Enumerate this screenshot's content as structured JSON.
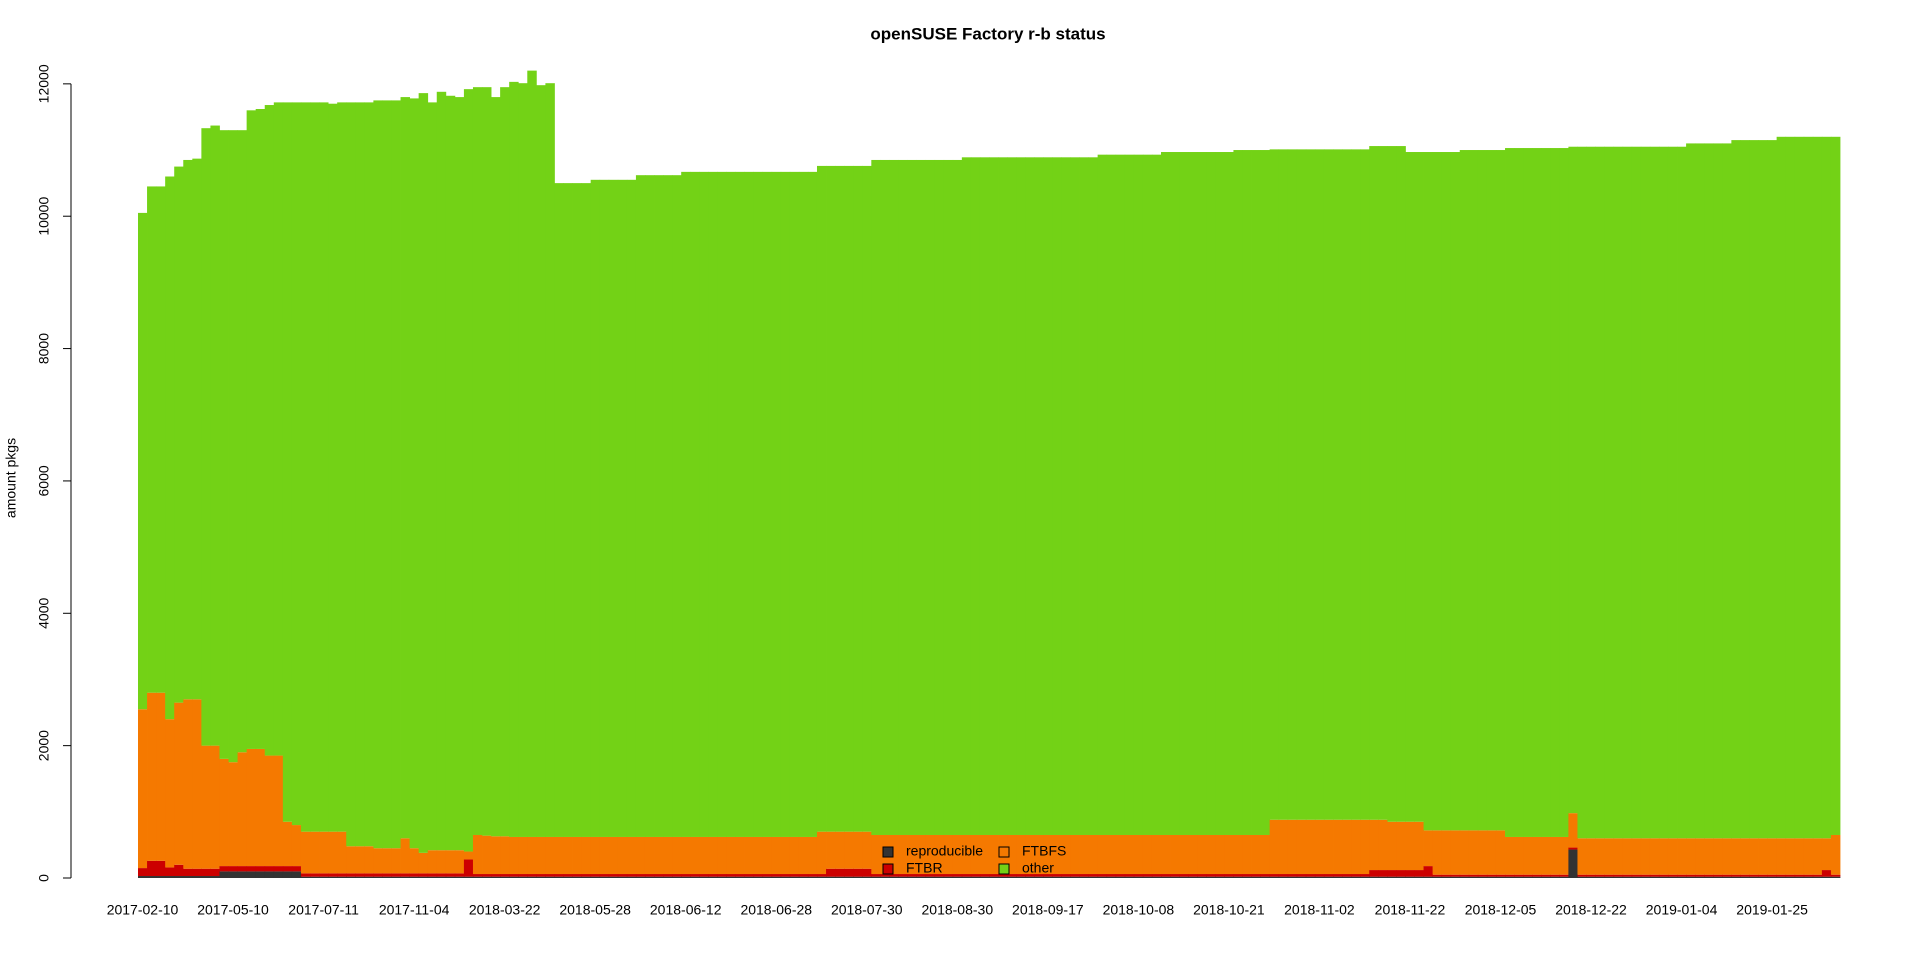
{
  "chart_data": {
    "type": "stacked-bar",
    "title": "openSUSE Factory r-b status",
    "y_label": "amount pkgs",
    "categories": [
      "2017-02-10",
      null,
      null,
      null,
      null,
      null,
      null,
      null,
      null,
      null,
      "2017-05-10",
      null,
      null,
      null,
      null,
      null,
      null,
      null,
      null,
      null,
      "2017-07-11",
      null,
      null,
      null,
      null,
      null,
      null,
      null,
      null,
      null,
      "2017-11-04",
      null,
      null,
      null,
      null,
      null,
      null,
      null,
      null,
      null,
      "2018-03-22",
      null,
      null,
      null,
      null,
      null,
      null,
      null,
      null,
      null,
      "2018-05-28",
      null,
      null,
      null,
      null,
      null,
      null,
      null,
      null,
      null,
      "2018-06-12",
      null,
      null,
      null,
      null,
      null,
      null,
      null,
      null,
      null,
      "2018-06-28",
      null,
      null,
      null,
      null,
      null,
      null,
      null,
      null,
      null,
      "2018-07-30",
      null,
      null,
      null,
      null,
      null,
      null,
      null,
      null,
      null,
      "2018-08-30",
      null,
      null,
      null,
      null,
      null,
      null,
      null,
      null,
      null,
      "2018-09-17",
      null,
      null,
      null,
      null,
      null,
      null,
      null,
      null,
      null,
      "2018-10-08",
      null,
      null,
      null,
      null,
      null,
      null,
      null,
      null,
      null,
      "2018-10-21",
      null,
      null,
      null,
      null,
      null,
      null,
      null,
      null,
      null,
      "2018-11-02",
      null,
      null,
      null,
      null,
      null,
      null,
      null,
      null,
      null,
      "2018-11-22",
      null,
      null,
      null,
      null,
      null,
      null,
      null,
      null,
      null,
      "2018-12-05",
      null,
      null,
      null,
      null,
      null,
      null,
      null,
      null,
      null,
      "2018-12-22",
      null,
      null,
      null,
      null,
      null,
      null,
      null,
      null,
      null,
      "2019-01-04",
      null,
      null,
      null,
      null,
      null,
      null,
      null,
      null,
      null,
      "2019-01-25",
      null,
      null,
      null,
      null,
      null,
      null,
      null
    ],
    "series": [
      {
        "name": "reproducible",
        "color": "#333333",
        "values": [
          30,
          30,
          30,
          30,
          30,
          30,
          30,
          30,
          30,
          100,
          100,
          100,
          100,
          100,
          100,
          100,
          100,
          100,
          20,
          20,
          20,
          20,
          20,
          20,
          20,
          20,
          20,
          20,
          20,
          20,
          20,
          20,
          20,
          20,
          20,
          20,
          20,
          20,
          20,
          20,
          20,
          20,
          20,
          20,
          20,
          20,
          20,
          20,
          20,
          20,
          20,
          20,
          20,
          20,
          20,
          20,
          20,
          20,
          20,
          20,
          20,
          20,
          20,
          20,
          20,
          20,
          20,
          20,
          20,
          20,
          20,
          20,
          20,
          20,
          20,
          20,
          20,
          20,
          20,
          20,
          20,
          20,
          20,
          20,
          20,
          20,
          20,
          20,
          20,
          20,
          20,
          20,
          20,
          20,
          20,
          20,
          20,
          20,
          20,
          20,
          20,
          20,
          20,
          20,
          20,
          20,
          20,
          20,
          20,
          20,
          20,
          20,
          20,
          20,
          20,
          20,
          20,
          20,
          20,
          20,
          20,
          20,
          20,
          20,
          20,
          20,
          20,
          20,
          20,
          20,
          20,
          20,
          20,
          20,
          20,
          20,
          20,
          20,
          20,
          20,
          20,
          20,
          20,
          20,
          20,
          20,
          20,
          20,
          20,
          20,
          20,
          20,
          20,
          20,
          20,
          20,
          20,
          20,
          430,
          20,
          20,
          20,
          20,
          20,
          20,
          20,
          20,
          20,
          20,
          20,
          20,
          20,
          20,
          20,
          20,
          20,
          20,
          20,
          20,
          20,
          20,
          20,
          20,
          20,
          20,
          20,
          20,
          20
        ]
      },
      {
        "name": "FTBR",
        "color": "#cc0000",
        "values": [
          120,
          230,
          230,
          130,
          170,
          110,
          110,
          110,
          110,
          80,
          80,
          80,
          80,
          80,
          80,
          80,
          80,
          80,
          50,
          50,
          50,
          50,
          50,
          50,
          50,
          50,
          50,
          50,
          50,
          50,
          50,
          50,
          50,
          50,
          50,
          50,
          260,
          40,
          40,
          40,
          40,
          40,
          40,
          40,
          40,
          40,
          40,
          40,
          40,
          40,
          40,
          40,
          40,
          40,
          40,
          40,
          40,
          40,
          40,
          40,
          40,
          40,
          40,
          40,
          40,
          40,
          40,
          40,
          40,
          40,
          40,
          40,
          40,
          40,
          40,
          40,
          120,
          120,
          120,
          120,
          120,
          40,
          40,
          40,
          40,
          40,
          40,
          40,
          40,
          40,
          40,
          40,
          40,
          40,
          40,
          40,
          40,
          40,
          40,
          40,
          40,
          40,
          40,
          40,
          40,
          40,
          40,
          40,
          40,
          40,
          40,
          40,
          40,
          40,
          40,
          40,
          40,
          40,
          40,
          40,
          40,
          40,
          40,
          40,
          40,
          40,
          40,
          40,
          40,
          40,
          40,
          40,
          40,
          40,
          40,
          40,
          100,
          100,
          100,
          100,
          100,
          100,
          160,
          30,
          30,
          30,
          30,
          30,
          30,
          30,
          30,
          30,
          30,
          30,
          30,
          30,
          30,
          30,
          30,
          30,
          30,
          30,
          30,
          30,
          30,
          30,
          30,
          30,
          30,
          30,
          30,
          30,
          30,
          30,
          30,
          30,
          30,
          30,
          30,
          30,
          30,
          30,
          30,
          30,
          30,
          30,
          100,
          30
        ]
      },
      {
        "name": "FTBFS",
        "color": "#f57900",
        "values": [
          2400,
          2540,
          2540,
          2240,
          2450,
          2560,
          2560,
          1860,
          1860,
          1620,
          1570,
          1720,
          1770,
          1770,
          1670,
          1670,
          670,
          620,
          630,
          630,
          630,
          630,
          630,
          410,
          410,
          410,
          380,
          380,
          380,
          530,
          380,
          310,
          350,
          350,
          350,
          350,
          120,
          590,
          580,
          570,
          570,
          560,
          560,
          560,
          560,
          560,
          560,
          560,
          560,
          560,
          560,
          560,
          560,
          560,
          560,
          560,
          560,
          560,
          560,
          560,
          560,
          560,
          560,
          560,
          560,
          560,
          560,
          560,
          560,
          560,
          560,
          560,
          560,
          560,
          560,
          640,
          560,
          560,
          560,
          560,
          560,
          590,
          590,
          590,
          590,
          590,
          590,
          590,
          590,
          590,
          590,
          590,
          590,
          590,
          590,
          590,
          590,
          590,
          590,
          590,
          590,
          590,
          590,
          590,
          590,
          590,
          590,
          590,
          590,
          590,
          590,
          590,
          590,
          590,
          590,
          590,
          590,
          590,
          590,
          590,
          590,
          590,
          590,
          590,
          590,
          820,
          820,
          820,
          820,
          820,
          820,
          820,
          820,
          820,
          820,
          820,
          760,
          760,
          730,
          730,
          730,
          730,
          540,
          670,
          670,
          670,
          670,
          670,
          670,
          670,
          670,
          570,
          570,
          570,
          570,
          570,
          570,
          570,
          520,
          550,
          550,
          550,
          550,
          550,
          550,
          550,
          550,
          550,
          550,
          550,
          550,
          550,
          550,
          550,
          550,
          550,
          550,
          550,
          550,
          550,
          550,
          550,
          550,
          550,
          550,
          550,
          480,
          600
        ]
      },
      {
        "name": "other",
        "color": "#73d216",
        "values": [
          7500,
          7650,
          7650,
          8200,
          8100,
          8150,
          8170,
          9330,
          9370,
          9500,
          9550,
          9400,
          9650,
          9670,
          9830,
          9870,
          10870,
          10920,
          11020,
          11020,
          11020,
          11000,
          11020,
          11240,
          11240,
          11240,
          11300,
          11300,
          11300,
          11200,
          11330,
          11480,
          11300,
          11460,
          11400,
          11380,
          11520,
          11300,
          11310,
          11170,
          11320,
          11410,
          11390,
          11580,
          11360,
          11390,
          9880,
          9880,
          9880,
          9880,
          9930,
          9930,
          9930,
          9930,
          9930,
          10000,
          10000,
          10000,
          10000,
          10000,
          10050,
          10050,
          10050,
          10050,
          10050,
          10050,
          10050,
          10050,
          10050,
          10050,
          10050,
          10050,
          10050,
          10050,
          10050,
          10060,
          10060,
          10060,
          10060,
          10060,
          10060,
          10200,
          10200,
          10200,
          10200,
          10200,
          10200,
          10200,
          10200,
          10200,
          10200,
          10240,
          10240,
          10240,
          10240,
          10240,
          10240,
          10240,
          10240,
          10240,
          10240,
          10240,
          10240,
          10240,
          10240,
          10240,
          10280,
          10280,
          10280,
          10280,
          10280,
          10280,
          10280,
          10320,
          10320,
          10320,
          10320,
          10320,
          10320,
          10320,
          10320,
          10350,
          10350,
          10350,
          10350,
          10130,
          10130,
          10130,
          10130,
          10130,
          10130,
          10130,
          10130,
          10130,
          10130,
          10130,
          10180,
          10180,
          10210,
          10210,
          10120,
          10120,
          10250,
          10250,
          10250,
          10250,
          10280,
          10280,
          10280,
          10280,
          10280,
          10410,
          10410,
          10410,
          10410,
          10410,
          10410,
          10410,
          10070,
          10450,
          10450,
          10450,
          10450,
          10450,
          10450,
          10450,
          10450,
          10450,
          10450,
          10450,
          10450,
          10500,
          10500,
          10500,
          10500,
          10500,
          10550,
          10550,
          10550,
          10550,
          10550,
          10600,
          10600,
          10600,
          10600,
          10600,
          10600,
          10550
        ]
      }
    ],
    "ylim": [
      0,
      12300
    ],
    "yticks": [
      0,
      2000,
      4000,
      6000,
      8000,
      10000,
      12000
    ],
    "grid": false,
    "legend": "bottom"
  }
}
